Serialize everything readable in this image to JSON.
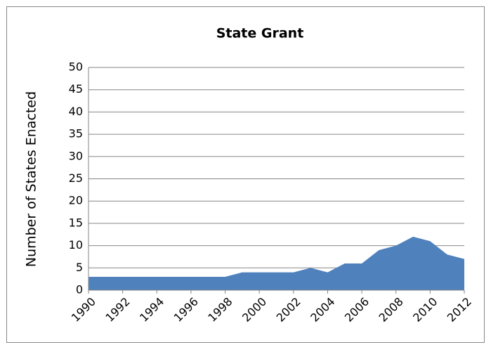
{
  "chart_data": {
    "type": "area",
    "title": "State Grant",
    "y_label": "Number of States Enacted",
    "x": [
      1990,
      1991,
      1992,
      1993,
      1994,
      1995,
      1996,
      1997,
      1998,
      1999,
      2000,
      2001,
      2002,
      2003,
      2004,
      2005,
      2006,
      2007,
      2008,
      2009,
      2010,
      2011,
      2012
    ],
    "series": [
      {
        "name": null,
        "color": "#4f81bd",
        "values": [
          3,
          3,
          3,
          3,
          3,
          3,
          3,
          3,
          3,
          4,
          4,
          4,
          4,
          5,
          4,
          6,
          6,
          9,
          10,
          12,
          11,
          8,
          7
        ]
      }
    ],
    "xlim": [
      1990,
      2012
    ],
    "xticks": [
      1990,
      1992,
      1994,
      1996,
      1998,
      2000,
      2002,
      2004,
      2006,
      2008,
      2010,
      2012
    ],
    "ylim": [
      0,
      50
    ],
    "yticks": [
      0,
      5,
      10,
      15,
      20,
      25,
      30,
      35,
      40,
      45,
      50
    ],
    "grid": true
  }
}
